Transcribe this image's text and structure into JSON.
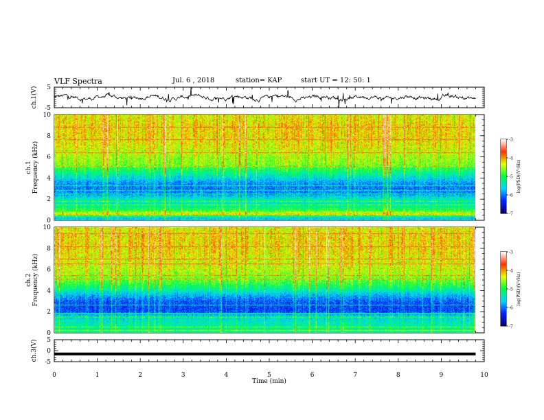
{
  "header": {
    "title": "VLF Spectra",
    "date": "Jul. 6 , 2018",
    "station": "station= KAP",
    "start": "start UT = 12: 50: 1"
  },
  "chart_data": [
    {
      "type": "line",
      "panel": "ch1-waveform",
      "ylabel": "ch.1(V)",
      "ylim": [
        -5,
        5
      ],
      "y_ticks": [
        "5",
        "-5"
      ],
      "x_range": [
        0,
        10
      ],
      "trace_color": "#000000",
      "trace_approx_mean": 0,
      "trace_approx_amplitude": 2
    },
    {
      "type": "heatmap",
      "panel": "ch1-spectrogram",
      "ylabel": "ch.1\nFrequency (kHz)",
      "ylim": [
        0,
        10
      ],
      "y_ticks": [
        "0",
        "2",
        "4",
        "6",
        "8",
        "10"
      ],
      "x_range": [
        0,
        9.8
      ],
      "colorbar": {
        "label": "log(PSD)(V²/Hz)",
        "range": [
          -7,
          -3
        ],
        "ticks": [
          "-3",
          "-4",
          "-5",
          "-6",
          "-7"
        ],
        "stops": [
          "#000070",
          "#0020ff",
          "#00d8ff",
          "#00ff40",
          "#e8ff00",
          "#ff3000",
          "#ffffff"
        ]
      },
      "approx_log_psd_by_freq_khz": [
        {
          "f": 0.25,
          "v": -5.6
        },
        {
          "f": 0.6,
          "v": -4.3
        },
        {
          "f": 1.0,
          "v": -5.0
        },
        {
          "f": 1.5,
          "v": -5.4
        },
        {
          "f": 2.0,
          "v": -5.4
        },
        {
          "f": 2.5,
          "v": -5.9
        },
        {
          "f": 3.0,
          "v": -6.0
        },
        {
          "f": 3.5,
          "v": -5.9
        },
        {
          "f": 4.2,
          "v": -5.4
        },
        {
          "f": 4.8,
          "v": -5.0
        },
        {
          "f": 5.3,
          "v": -4.6
        },
        {
          "f": 6.0,
          "v": -4.5
        },
        {
          "f": 7.0,
          "v": -4.3
        },
        {
          "f": 8.0,
          "v": -4.2
        },
        {
          "f": 9.0,
          "v": -4.2
        },
        {
          "f": 9.8,
          "v": -4.3
        }
      ]
    },
    {
      "type": "heatmap",
      "panel": "ch2-spectrogram",
      "ylabel": "ch.2\nFrequency (kHz)",
      "ylim": [
        0,
        10
      ],
      "y_ticks": [
        "0",
        "2",
        "4",
        "6",
        "8",
        "10"
      ],
      "x_range": [
        0,
        9.8
      ],
      "colorbar": {
        "label": "log(PSD)(V²/Hz)",
        "range": [
          -7,
          -3
        ],
        "ticks": [
          "-3",
          "-4",
          "-5",
          "-6",
          "-7"
        ],
        "stops": [
          "#000070",
          "#0020ff",
          "#00d8ff",
          "#00ff40",
          "#e8ff00",
          "#ff3000",
          "#ffffff"
        ]
      },
      "approx_log_psd_by_freq_khz": [
        {
          "f": 0.25,
          "v": -5.2
        },
        {
          "f": 0.6,
          "v": -5.3
        },
        {
          "f": 1.0,
          "v": -5.4
        },
        {
          "f": 1.5,
          "v": -5.6
        },
        {
          "f": 2.0,
          "v": -6.2
        },
        {
          "f": 2.5,
          "v": -6.2
        },
        {
          "f": 3.0,
          "v": -6.1
        },
        {
          "f": 3.5,
          "v": -5.8
        },
        {
          "f": 4.2,
          "v": -5.2
        },
        {
          "f": 4.8,
          "v": -4.8
        },
        {
          "f": 5.3,
          "v": -4.6
        },
        {
          "f": 6.0,
          "v": -4.4
        },
        {
          "f": 7.0,
          "v": -4.3
        },
        {
          "f": 8.0,
          "v": -4.2
        },
        {
          "f": 9.0,
          "v": -4.2
        },
        {
          "f": 9.8,
          "v": -4.3
        }
      ]
    },
    {
      "type": "line",
      "panel": "ch3-waveform",
      "ylabel": "ch.3(V)",
      "ylim": [
        -5,
        5
      ],
      "y_ticks": [
        "5",
        "0",
        "-5"
      ],
      "x_range": [
        0,
        9.8
      ],
      "trace_color": "#000000",
      "trace_approx_value": -1.5
    }
  ],
  "x_axis": {
    "label": "Time (min)",
    "range": [
      0,
      10
    ],
    "ticks": [
      "0",
      "1",
      "2",
      "3",
      "4",
      "5",
      "6",
      "7",
      "8",
      "9",
      "10"
    ]
  }
}
